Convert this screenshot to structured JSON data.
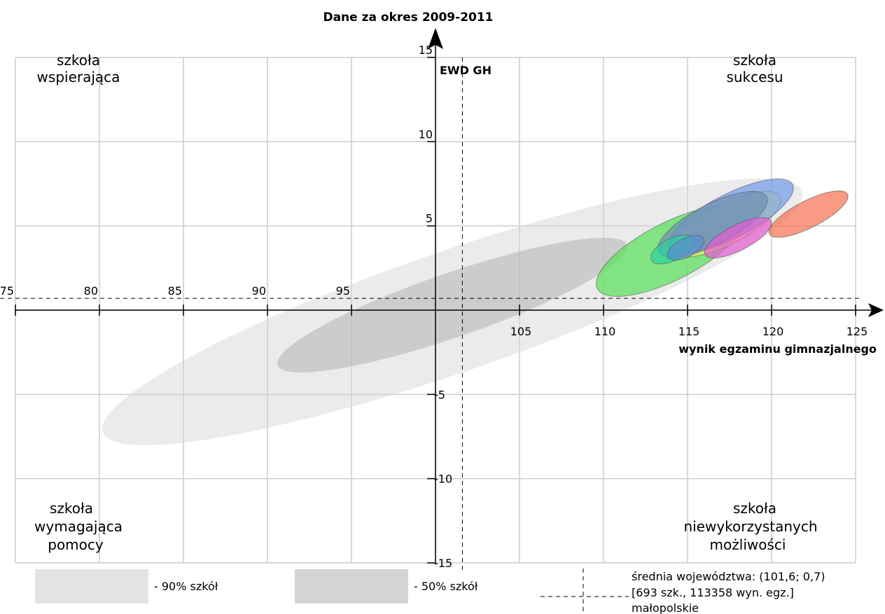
{
  "chart_data": {
    "type": "scatter",
    "title": "Dane za okres 2009-2011",
    "xlabel": "wynik egzaminu gimnazjalnego",
    "ylabel": "EWD GH",
    "xlim": [
      75,
      125
    ],
    "ylim": [
      -15,
      15
    ],
    "x_ticks": [
      "75",
      "80",
      "85",
      "90",
      "95",
      "105",
      "110",
      "115",
      "120",
      "125"
    ],
    "y_ticks": [
      "15",
      "10",
      "5",
      "-5",
      "-10",
      "-15"
    ],
    "grid": true,
    "quadrant_labels": {
      "top_left": [
        "szkoła",
        "wspierająca"
      ],
      "top_right": [
        "szkoła",
        "sukcesu"
      ],
      "bottom_left": [
        "szkoła",
        "wymagająca",
        "pomocy"
      ],
      "bottom_right": [
        "szkoła",
        "niewykorzystanych",
        "możliwości"
      ]
    },
    "reference_point": {
      "x": 101.6,
      "y": 0.7
    },
    "reference_ellipses": [
      {
        "level": "90%",
        "cx": 101,
        "cy": -0.1,
        "rx": 22.0,
        "ry": 3.6,
        "angle_deg": -19,
        "color": "#d3d3d3"
      },
      {
        "level": "50%",
        "cx": 101,
        "cy": 0.3,
        "rx": 11.0,
        "ry": 1.9,
        "angle_deg": -19,
        "color": "#b8b8b8"
      }
    ],
    "school_ellipses": [
      {
        "cx": 114.0,
        "cy": 3.5,
        "rx": 4.9,
        "ry": 1.7,
        "angle_deg": -27,
        "color": "#55e055"
      },
      {
        "cx": 117.3,
        "cy": 5.1,
        "rx": 3.6,
        "ry": 1.2,
        "angle_deg": -27,
        "color": "#f2ec70"
      },
      {
        "cx": 117.6,
        "cy": 5.6,
        "rx": 4.1,
        "ry": 1.3,
        "angle_deg": -27,
        "color": "#6f9de8"
      },
      {
        "cx": 116.5,
        "cy": 5.1,
        "rx": 3.6,
        "ry": 1.2,
        "angle_deg": -27,
        "color": "#6f8fb0"
      },
      {
        "cx": 114.1,
        "cy": 3.6,
        "rx": 1.4,
        "ry": 0.65,
        "angle_deg": -27,
        "color": "#29d0a0"
      },
      {
        "cx": 114.9,
        "cy": 3.7,
        "rx": 1.2,
        "ry": 0.55,
        "angle_deg": -27,
        "color": "#5a8fd0"
      },
      {
        "cx": 118.0,
        "cy": 4.3,
        "rx": 2.2,
        "ry": 0.75,
        "angle_deg": -27,
        "color": "#e65ad2"
      },
      {
        "cx": 122.2,
        "cy": 5.7,
        "rx": 2.6,
        "ry": 0.8,
        "angle_deg": -27,
        "color": "#f56f50"
      }
    ],
    "legend": {
      "p90": "- 90% szkół",
      "p50": "- 50% szkół",
      "mean_line1": "średnia województwa: (101,6; 0,7)",
      "mean_line2": "[693 szk., 113358 wyn. egz.]",
      "mean_line3": "małopolskie"
    }
  }
}
